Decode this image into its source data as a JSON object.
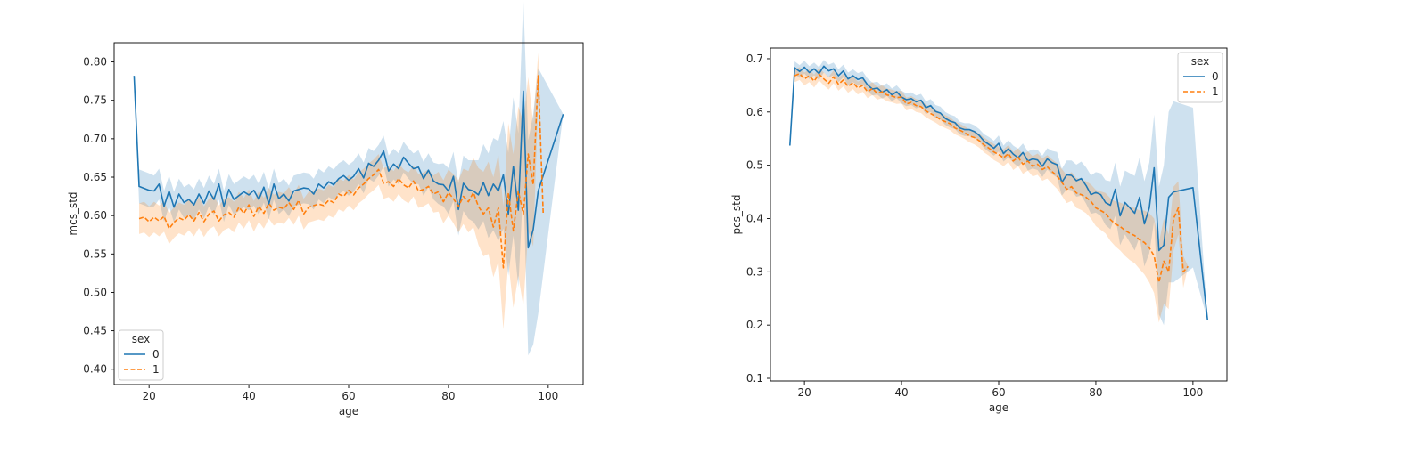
{
  "chart_data": [
    {
      "type": "line",
      "title": "",
      "xlabel": "age",
      "ylabel": "mcs_std",
      "xlim": [
        13,
        107
      ],
      "ylim": [
        0.38,
        0.825
      ],
      "xticks": [
        20,
        40,
        60,
        80,
        100
      ],
      "yticks": [
        0.4,
        0.45,
        0.5,
        0.55,
        0.6,
        0.65,
        0.7,
        0.75,
        0.8
      ],
      "grid": false,
      "legend": {
        "title": "sex",
        "placement": "lower-left",
        "entries": [
          "0",
          "1"
        ]
      },
      "series": [
        {
          "name": "0",
          "color": "#1f77b4",
          "dash": "solid",
          "x": [
            17,
            18,
            20,
            21,
            22,
            23,
            24,
            25,
            26,
            27,
            28,
            29,
            30,
            31,
            32,
            33,
            34,
            35,
            36,
            37,
            38,
            39,
            40,
            41,
            42,
            43,
            44,
            45,
            46,
            47,
            48,
            49,
            50,
            51,
            52,
            53,
            54,
            55,
            56,
            57,
            58,
            59,
            60,
            61,
            62,
            63,
            64,
            65,
            66,
            67,
            68,
            69,
            70,
            71,
            72,
            73,
            74,
            75,
            76,
            77,
            78,
            79,
            80,
            81,
            82,
            83,
            84,
            85,
            86,
            87,
            88,
            89,
            90,
            91,
            92,
            93,
            94,
            95,
            96,
            97,
            98,
            103
          ],
          "y": [
            0.782,
            0.638,
            0.633,
            0.632,
            0.641,
            0.612,
            0.632,
            0.611,
            0.628,
            0.617,
            0.621,
            0.614,
            0.628,
            0.616,
            0.632,
            0.621,
            0.641,
            0.612,
            0.634,
            0.621,
            0.626,
            0.631,
            0.627,
            0.633,
            0.621,
            0.637,
            0.615,
            0.641,
            0.622,
            0.628,
            0.619,
            0.632,
            0.634,
            0.636,
            0.635,
            0.628,
            0.641,
            0.636,
            0.644,
            0.64,
            0.648,
            0.652,
            0.646,
            0.651,
            0.661,
            0.649,
            0.668,
            0.664,
            0.672,
            0.684,
            0.658,
            0.667,
            0.661,
            0.676,
            0.668,
            0.661,
            0.663,
            0.648,
            0.659,
            0.645,
            0.641,
            0.64,
            0.632,
            0.651,
            0.608,
            0.642,
            0.634,
            0.632,
            0.627,
            0.643,
            0.626,
            0.641,
            0.632,
            0.653,
            0.602,
            0.664,
            0.607,
            0.762,
            0.558,
            0.582,
            0.632,
            0.732
          ],
          "ci_halfwidth": [
            0.0,
            0.022,
            0.022,
            0.02,
            0.02,
            0.02,
            0.02,
            0.02,
            0.02,
            0.02,
            0.02,
            0.02,
            0.02,
            0.02,
            0.02,
            0.02,
            0.02,
            0.02,
            0.02,
            0.02,
            0.02,
            0.02,
            0.02,
            0.02,
            0.02,
            0.02,
            0.02,
            0.02,
            0.02,
            0.02,
            0.02,
            0.02,
            0.02,
            0.02,
            0.02,
            0.02,
            0.02,
            0.02,
            0.02,
            0.02,
            0.02,
            0.02,
            0.02,
            0.02,
            0.02,
            0.02,
            0.02,
            0.02,
            0.02,
            0.02,
            0.02,
            0.02,
            0.02,
            0.02,
            0.02,
            0.02,
            0.022,
            0.022,
            0.022,
            0.024,
            0.026,
            0.028,
            0.03,
            0.032,
            0.034,
            0.036,
            0.038,
            0.04,
            0.045,
            0.05,
            0.055,
            0.06,
            0.065,
            0.07,
            0.08,
            0.09,
            0.1,
            0.12,
            0.14,
            0.15,
            0.16,
            0.0
          ]
        },
        {
          "name": "1",
          "color": "#ff7f0e",
          "dash": "dashed",
          "x": [
            18,
            19,
            20,
            21,
            22,
            23,
            24,
            25,
            26,
            27,
            28,
            29,
            30,
            31,
            32,
            33,
            34,
            35,
            36,
            37,
            38,
            39,
            40,
            41,
            42,
            43,
            44,
            45,
            46,
            47,
            48,
            49,
            50,
            51,
            52,
            53,
            54,
            55,
            56,
            57,
            58,
            59,
            60,
            61,
            62,
            63,
            64,
            65,
            66,
            67,
            68,
            69,
            70,
            71,
            72,
            73,
            74,
            75,
            76,
            77,
            78,
            79,
            80,
            81,
            82,
            83,
            84,
            85,
            86,
            87,
            88,
            89,
            90,
            91,
            92,
            93,
            94,
            95,
            96,
            97,
            98,
            99
          ],
          "y": [
            0.596,
            0.598,
            0.592,
            0.598,
            0.593,
            0.599,
            0.583,
            0.591,
            0.597,
            0.594,
            0.601,
            0.593,
            0.604,
            0.592,
            0.602,
            0.606,
            0.593,
            0.601,
            0.604,
            0.598,
            0.611,
            0.603,
            0.614,
            0.599,
            0.612,
            0.603,
            0.616,
            0.607,
            0.611,
            0.609,
            0.617,
            0.608,
            0.62,
            0.602,
            0.611,
            0.613,
            0.615,
            0.613,
            0.62,
            0.617,
            0.628,
            0.625,
            0.633,
            0.627,
            0.636,
            0.641,
            0.648,
            0.653,
            0.66,
            0.642,
            0.644,
            0.638,
            0.648,
            0.64,
            0.636,
            0.645,
            0.632,
            0.634,
            0.638,
            0.628,
            0.631,
            0.618,
            0.63,
            0.622,
            0.612,
            0.625,
            0.618,
            0.63,
            0.612,
            0.602,
            0.61,
            0.585,
            0.61,
            0.532,
            0.63,
            0.58,
            0.632,
            0.602,
            0.68,
            0.64,
            0.782,
            0.603
          ],
          "ci_halfwidth": [
            0.02,
            0.02,
            0.02,
            0.02,
            0.02,
            0.02,
            0.02,
            0.02,
            0.02,
            0.02,
            0.02,
            0.02,
            0.02,
            0.02,
            0.02,
            0.02,
            0.02,
            0.02,
            0.02,
            0.02,
            0.02,
            0.02,
            0.02,
            0.02,
            0.02,
            0.02,
            0.02,
            0.02,
            0.02,
            0.02,
            0.02,
            0.02,
            0.02,
            0.02,
            0.02,
            0.02,
            0.02,
            0.02,
            0.02,
            0.02,
            0.02,
            0.02,
            0.02,
            0.02,
            0.02,
            0.02,
            0.02,
            0.02,
            0.02,
            0.02,
            0.02,
            0.02,
            0.02,
            0.02,
            0.02,
            0.02,
            0.022,
            0.022,
            0.022,
            0.024,
            0.026,
            0.028,
            0.03,
            0.032,
            0.034,
            0.036,
            0.04,
            0.045,
            0.05,
            0.055,
            0.06,
            0.065,
            0.07,
            0.08,
            0.09,
            0.1,
            0.11,
            0.12,
            0.1,
            0.08,
            0.03,
            0.0
          ]
        }
      ]
    },
    {
      "type": "line",
      "title": "",
      "xlabel": "age",
      "ylabel": "pcs_std",
      "xlim": [
        13,
        107
      ],
      "ylim": [
        0.095,
        0.72
      ],
      "xticks": [
        20,
        40,
        60,
        80,
        100
      ],
      "yticks": [
        0.1,
        0.2,
        0.3,
        0.4,
        0.5,
        0.6,
        0.7
      ],
      "grid": false,
      "legend": {
        "title": "sex",
        "placement": "upper-right",
        "entries": [
          "0",
          "1"
        ]
      },
      "series": [
        {
          "name": "0",
          "color": "#1f77b4",
          "dash": "solid",
          "x": [
            17,
            18,
            19,
            20,
            21,
            22,
            23,
            24,
            25,
            26,
            27,
            28,
            29,
            30,
            31,
            32,
            33,
            34,
            35,
            36,
            37,
            38,
            39,
            40,
            41,
            42,
            43,
            44,
            45,
            46,
            47,
            48,
            49,
            50,
            51,
            52,
            53,
            54,
            55,
            56,
            57,
            58,
            59,
            60,
            61,
            62,
            63,
            64,
            65,
            66,
            67,
            68,
            69,
            70,
            71,
            72,
            73,
            74,
            75,
            76,
            77,
            78,
            79,
            80,
            81,
            82,
            83,
            84,
            85,
            86,
            87,
            88,
            89,
            90,
            91,
            92,
            93,
            94,
            95,
            96,
            100,
            103
          ],
          "y": [
            0.537,
            0.683,
            0.676,
            0.684,
            0.674,
            0.681,
            0.672,
            0.686,
            0.677,
            0.681,
            0.668,
            0.677,
            0.662,
            0.668,
            0.661,
            0.664,
            0.651,
            0.643,
            0.645,
            0.637,
            0.642,
            0.632,
            0.638,
            0.628,
            0.623,
            0.625,
            0.619,
            0.622,
            0.608,
            0.612,
            0.601,
            0.598,
            0.588,
            0.583,
            0.58,
            0.57,
            0.567,
            0.567,
            0.563,
            0.556,
            0.545,
            0.539,
            0.532,
            0.541,
            0.522,
            0.531,
            0.521,
            0.514,
            0.524,
            0.508,
            0.512,
            0.51,
            0.498,
            0.512,
            0.505,
            0.501,
            0.468,
            0.482,
            0.481,
            0.471,
            0.475,
            0.462,
            0.445,
            0.449,
            0.445,
            0.43,
            0.425,
            0.455,
            0.405,
            0.43,
            0.42,
            0.41,
            0.44,
            0.39,
            0.42,
            0.495,
            0.34,
            0.35,
            0.44,
            0.45,
            0.458,
            0.21
          ],
          "ci_halfwidth": [
            0.0,
            0.012,
            0.012,
            0.012,
            0.012,
            0.012,
            0.012,
            0.012,
            0.012,
            0.012,
            0.012,
            0.012,
            0.012,
            0.012,
            0.012,
            0.012,
            0.012,
            0.012,
            0.012,
            0.012,
            0.012,
            0.012,
            0.012,
            0.012,
            0.012,
            0.012,
            0.012,
            0.012,
            0.012,
            0.012,
            0.012,
            0.012,
            0.012,
            0.012,
            0.012,
            0.012,
            0.012,
            0.012,
            0.012,
            0.012,
            0.013,
            0.014,
            0.014,
            0.015,
            0.015,
            0.016,
            0.016,
            0.017,
            0.017,
            0.018,
            0.018,
            0.019,
            0.02,
            0.02,
            0.022,
            0.024,
            0.025,
            0.027,
            0.028,
            0.03,
            0.032,
            0.034,
            0.036,
            0.038,
            0.04,
            0.042,
            0.045,
            0.05,
            0.055,
            0.06,
            0.065,
            0.07,
            0.075,
            0.08,
            0.085,
            0.1,
            0.12,
            0.15,
            0.16,
            0.17,
            0.15,
            0.0
          ]
        },
        {
          "name": "1",
          "color": "#ff7f0e",
          "dash": "dashed",
          "x": [
            18,
            19,
            20,
            21,
            22,
            23,
            24,
            25,
            26,
            27,
            28,
            29,
            30,
            31,
            32,
            33,
            34,
            35,
            36,
            37,
            38,
            39,
            40,
            41,
            42,
            43,
            44,
            45,
            46,
            47,
            48,
            49,
            50,
            51,
            52,
            53,
            54,
            55,
            56,
            57,
            58,
            59,
            60,
            61,
            62,
            63,
            64,
            65,
            66,
            67,
            68,
            69,
            70,
            71,
            72,
            73,
            74,
            75,
            76,
            77,
            78,
            79,
            80,
            81,
            82,
            83,
            84,
            85,
            86,
            87,
            88,
            89,
            90,
            91,
            92,
            93,
            94,
            95,
            96,
            97,
            98,
            99
          ],
          "y": [
            0.668,
            0.672,
            0.662,
            0.668,
            0.658,
            0.671,
            0.662,
            0.654,
            0.666,
            0.652,
            0.66,
            0.648,
            0.655,
            0.645,
            0.65,
            0.638,
            0.644,
            0.635,
            0.638,
            0.632,
            0.63,
            0.627,
            0.628,
            0.615,
            0.618,
            0.612,
            0.61,
            0.602,
            0.597,
            0.592,
            0.586,
            0.582,
            0.578,
            0.57,
            0.566,
            0.561,
            0.555,
            0.552,
            0.546,
            0.538,
            0.532,
            0.525,
            0.52,
            0.514,
            0.522,
            0.508,
            0.515,
            0.502,
            0.508,
            0.498,
            0.502,
            0.492,
            0.497,
            0.488,
            0.48,
            0.468,
            0.455,
            0.46,
            0.448,
            0.445,
            0.44,
            0.432,
            0.42,
            0.415,
            0.41,
            0.398,
            0.39,
            0.385,
            0.378,
            0.372,
            0.368,
            0.36,
            0.355,
            0.345,
            0.33,
            0.28,
            0.32,
            0.3,
            0.4,
            0.42,
            0.3,
            0.31
          ],
          "ci_halfwidth": [
            0.012,
            0.012,
            0.012,
            0.012,
            0.012,
            0.012,
            0.012,
            0.012,
            0.012,
            0.012,
            0.012,
            0.012,
            0.012,
            0.012,
            0.012,
            0.012,
            0.012,
            0.012,
            0.012,
            0.012,
            0.012,
            0.012,
            0.012,
            0.012,
            0.012,
            0.012,
            0.012,
            0.012,
            0.012,
            0.012,
            0.012,
            0.012,
            0.012,
            0.012,
            0.012,
            0.012,
            0.012,
            0.013,
            0.013,
            0.014,
            0.014,
            0.015,
            0.015,
            0.016,
            0.016,
            0.017,
            0.017,
            0.018,
            0.018,
            0.019,
            0.02,
            0.021,
            0.022,
            0.023,
            0.024,
            0.025,
            0.026,
            0.027,
            0.028,
            0.029,
            0.03,
            0.032,
            0.034,
            0.036,
            0.038,
            0.04,
            0.042,
            0.045,
            0.048,
            0.05,
            0.052,
            0.055,
            0.06,
            0.065,
            0.07,
            0.075,
            0.08,
            0.07,
            0.06,
            0.05,
            0.03,
            0.0
          ]
        }
      ]
    }
  ]
}
